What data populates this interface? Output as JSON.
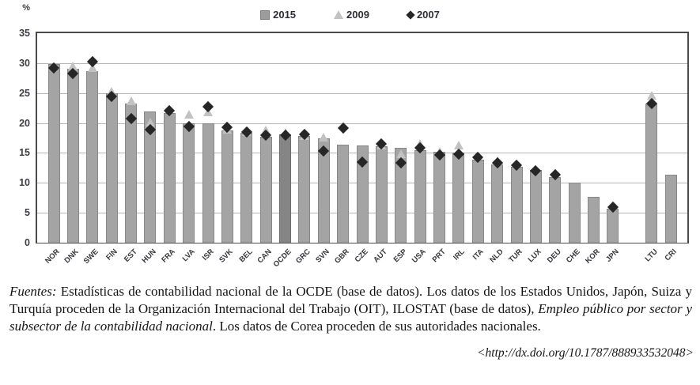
{
  "chart": {
    "percent_label": "%",
    "yticks": [
      0,
      5,
      10,
      15,
      20,
      25,
      30,
      35
    ],
    "legend": [
      {
        "label": "2015",
        "marker": "square-icon"
      },
      {
        "label": "2009",
        "marker": "triangle-icon"
      },
      {
        "label": "2007",
        "marker": "diamond-icon"
      }
    ]
  },
  "chart_data": {
    "type": "bar",
    "title": "",
    "xlabel": "",
    "ylabel": "%",
    "ylim": [
      0,
      35
    ],
    "grid": true,
    "legend_position": "top-center",
    "highlight_category": "OCDE",
    "gap_before_index": 30,
    "categories": [
      "NOR",
      "DNK",
      "SWE",
      "FIN",
      "EST",
      "HUN",
      "FRA",
      "LVA",
      "ISR",
      "SVK",
      "BEL",
      "CAN",
      "OCDE",
      "GRC",
      "SVN",
      "GBR",
      "CZE",
      "AUT",
      "ESP",
      "USA",
      "PRT",
      "IRL",
      "ITA",
      "NLD",
      "TUR",
      "LUX",
      "DEU",
      "CHE",
      "KOR",
      "JPN",
      "LTU",
      "CRI"
    ],
    "series": [
      {
        "name": "2015",
        "type": "bar",
        "values": [
          29.9,
          29.1,
          28.7,
          24.9,
          23.2,
          21.9,
          21.7,
          20.0,
          20.0,
          18.7,
          18.4,
          17.7,
          18.1,
          17.8,
          17.5,
          16.4,
          16.3,
          16.1,
          15.8,
          15.4,
          15.2,
          15.0,
          13.9,
          13.1,
          12.7,
          12.2,
          10.9,
          10.0,
          7.6,
          5.7,
          23.2,
          11.3
        ]
      },
      {
        "name": "2009",
        "type": "scatter-triangle",
        "values": [
          null,
          29.5,
          29.3,
          25.3,
          23.7,
          20.1,
          null,
          21.5,
          21.8,
          19.0,
          18.6,
          18.8,
          18.4,
          17.9,
          17.6,
          null,
          null,
          16.3,
          14.9,
          16.6,
          15.3,
          16.3,
          null,
          13.7,
          null,
          null,
          null,
          null,
          null,
          null,
          24.6,
          null
        ]
      },
      {
        "name": "2007",
        "type": "scatter-diamond",
        "values": [
          29.2,
          28.3,
          30.3,
          24.5,
          20.8,
          18.9,
          22.0,
          19.4,
          22.7,
          19.3,
          18.5,
          17.9,
          17.9,
          18.1,
          15.3,
          19.2,
          13.5,
          16.5,
          13.3,
          15.8,
          14.6,
          14.8,
          14.3,
          13.4,
          13.0,
          12.0,
          11.3,
          null,
          null,
          5.9,
          23.3,
          null
        ]
      }
    ]
  },
  "colors": {
    "bar": "#a4a4a4",
    "bar_border": "#878787",
    "ocde_bar": "#858585",
    "triangle_2009": "#c2c2c2",
    "diamond_2007": "#262626",
    "gridline": "#b5b5b5",
    "axis": "#4a4a4a",
    "text": "#36363c"
  },
  "footer": {
    "fuentes_label": "Fuentes:",
    "part1": " Estadísticas de contabilidad nacional de la OCDE (base de datos). Los datos de los Estados Unidos, Japón, Suiza y Turquía proceden de la Organización Internacional del Trabajo (OIT), ILOSTAT (base de datos), ",
    "italic_part": "Empleo público por sector y subsector de la contabilidad nacional",
    "part2": ". Los datos de Corea proceden de sus autoridades nacionales.",
    "doi": "<http://dx.doi.org/10.1787/888933532048>"
  }
}
